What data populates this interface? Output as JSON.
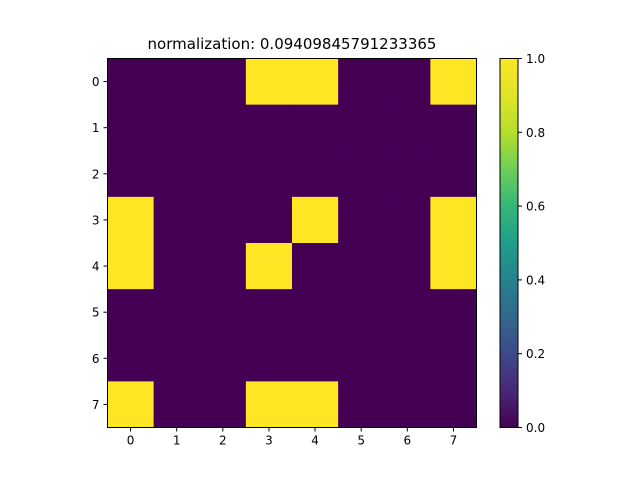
{
  "chart_data": {
    "type": "heatmap",
    "title": "normalization:  0.09409845791233365",
    "xlabel": "",
    "ylabel": "",
    "x_ticks": [
      "0",
      "1",
      "2",
      "3",
      "4",
      "5",
      "6",
      "7"
    ],
    "y_ticks": [
      "0",
      "1",
      "2",
      "3",
      "4",
      "5",
      "6",
      "7"
    ],
    "colormap": "viridis",
    "low_color": "#440154",
    "high_color": "#fde725",
    "vmin": 0.0,
    "vmax": 1.0,
    "values": [
      [
        0,
        0,
        0,
        1,
        1,
        0,
        0,
        1
      ],
      [
        0,
        0,
        0,
        0,
        0,
        0,
        0,
        0
      ],
      [
        0,
        0,
        0,
        0,
        0,
        0,
        0,
        0
      ],
      [
        1,
        0,
        0,
        0,
        1,
        0,
        0,
        1
      ],
      [
        1,
        0,
        0,
        1,
        0,
        0,
        0,
        1
      ],
      [
        0,
        0,
        0,
        0,
        0,
        0,
        0,
        0
      ],
      [
        0,
        0,
        0,
        0,
        0,
        0,
        0,
        0
      ],
      [
        1,
        0,
        0,
        1,
        1,
        0,
        0,
        0
      ]
    ],
    "colorbar": {
      "ticks": [
        "0.0",
        "0.2",
        "0.4",
        "0.6",
        "0.8",
        "1.0"
      ],
      "tick_values": [
        0.0,
        0.2,
        0.4,
        0.6,
        0.8,
        1.0
      ]
    }
  }
}
